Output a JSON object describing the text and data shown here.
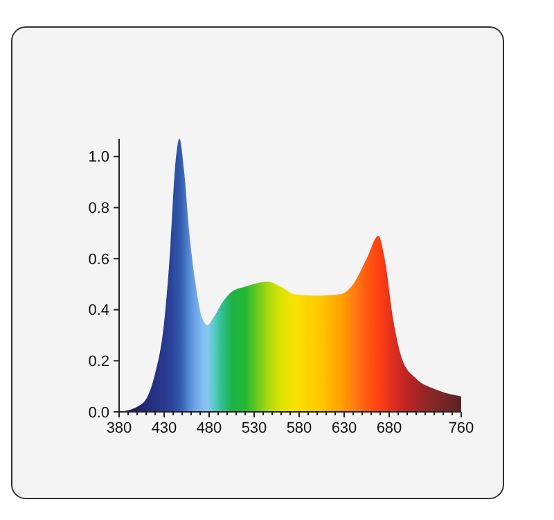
{
  "chart_data": {
    "type": "area",
    "x": [
      380,
      400,
      410,
      420,
      430,
      437,
      442,
      447,
      452,
      458,
      465,
      472,
      478,
      485,
      495,
      505,
      520,
      545,
      560,
      575,
      600,
      625,
      640,
      655,
      668,
      675,
      685,
      695,
      710,
      730,
      760
    ],
    "values": [
      0.0,
      0.02,
      0.05,
      0.15,
      0.35,
      0.65,
      0.95,
      1.07,
      0.95,
      0.7,
      0.5,
      0.37,
      0.34,
      0.37,
      0.43,
      0.47,
      0.49,
      0.51,
      0.49,
      0.46,
      0.455,
      0.46,
      0.5,
      0.6,
      0.69,
      0.6,
      0.35,
      0.2,
      0.13,
      0.09,
      0.06
    ],
    "colors": [
      "#1a1a55",
      "#1e2266",
      "#212a78",
      "#253284",
      "#28388e",
      "#2b4299",
      "#2d4ea3",
      "#3058aa",
      "#3e6cbc",
      "#5a8ad6",
      "#6ea6e6",
      "#80bcf0",
      "#88c6f0",
      "#5ccac8",
      "#2ec08a",
      "#1eb048",
      "#22b830",
      "#a8d810",
      "#dde400",
      "#f6e200",
      "#ffcc00",
      "#ffa400",
      "#ff8010",
      "#ff5a10",
      "#ff4212",
      "#f23a18",
      "#dc2e20",
      "#c82622",
      "#a82424",
      "#842626",
      "#5a2222"
    ],
    "xlim": [
      380,
      760
    ],
    "xticks": [
      380,
      {
        "value": 390,
        "label": null
      },
      {
        "value": 400,
        "label": null
      },
      {
        "value": 410,
        "label": null
      },
      {
        "value": 420,
        "label": null
      },
      430,
      {
        "value": 440,
        "label": null
      },
      {
        "value": 450,
        "label": null
      },
      {
        "value": 460,
        "label": null
      },
      {
        "value": 470,
        "label": null
      },
      480,
      {
        "value": 490,
        "label": null
      },
      {
        "value": 500,
        "label": null
      },
      {
        "value": 510,
        "label": null
      },
      {
        "value": 520,
        "label": null
      },
      530,
      {
        "value": 540,
        "label": null
      },
      {
        "value": 550,
        "label": null
      },
      {
        "value": 560,
        "label": null
      },
      {
        "value": 570,
        "label": null
      },
      580,
      {
        "value": 590,
        "label": null
      },
      {
        "value": 600,
        "label": null
      },
      {
        "value": 610,
        "label": null
      },
      {
        "value": 620,
        "label": null
      },
      630,
      {
        "value": 640,
        "label": null
      },
      {
        "value": 650,
        "label": null
      },
      {
        "value": 660,
        "label": null
      },
      {
        "value": 670,
        "label": null
      },
      680,
      {
        "value": 690,
        "label": null
      },
      {
        "value": 700,
        "label": null
      },
      {
        "value": 710,
        "label": null
      },
      {
        "value": 720,
        "label": null
      },
      {
        "value": 730,
        "label": null
      },
      {
        "value": 740,
        "label": null
      },
      {
        "value": 750,
        "label": null
      },
      760
    ],
    "ylim": [
      0,
      1.07
    ],
    "yticks": [
      {
        "value": 0,
        "label": "0.0"
      },
      0.2,
      0.4,
      0.6,
      0.8,
      {
        "value": 1,
        "label": "1.0"
      }
    ]
  }
}
